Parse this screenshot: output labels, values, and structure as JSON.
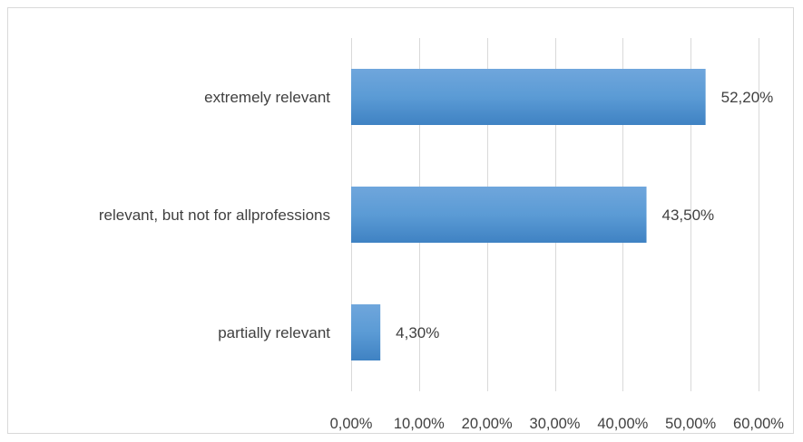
{
  "chart_data": {
    "type": "bar",
    "orientation": "horizontal",
    "title": "",
    "xlabel": "",
    "ylabel": "",
    "categories": [
      "extremely relevant",
      "relevant, but not for allprofessions",
      "partially relevant"
    ],
    "values": [
      52.2,
      43.5,
      4.3
    ],
    "data_labels": [
      "52,20%",
      "43,50%",
      "4,30%"
    ],
    "xlim": [
      0,
      60
    ],
    "x_ticks": [
      0,
      10,
      20,
      30,
      40,
      50,
      60
    ],
    "x_tick_labels": [
      "0,00%",
      "10,00%",
      "20,00%",
      "30,00%",
      "40,00%",
      "50,00%",
      "60,00%"
    ],
    "grid": "vertical",
    "legend": "none",
    "bar_color": "#5b9bd5"
  }
}
